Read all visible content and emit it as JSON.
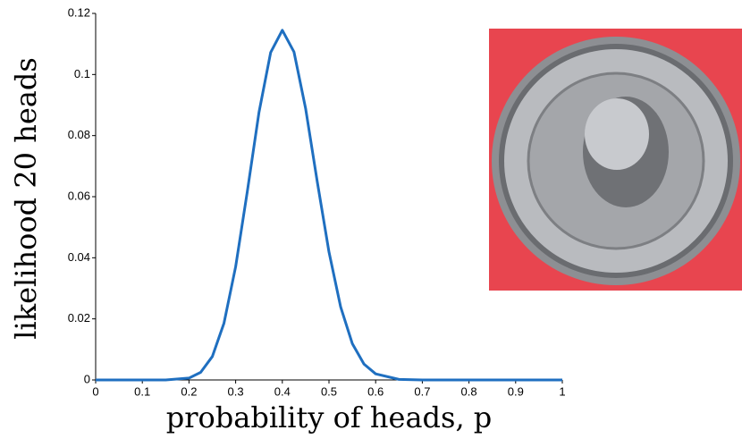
{
  "chart_data": {
    "type": "line",
    "xlabel": "probability of heads, p",
    "ylabel": "likelihood 20 heads",
    "x": [
      0,
      0.05,
      0.1,
      0.15,
      0.2,
      0.225,
      0.25,
      0.275,
      0.3,
      0.325,
      0.35,
      0.375,
      0.4,
      0.425,
      0.45,
      0.475,
      0.5,
      0.525,
      0.55,
      0.575,
      0.6,
      0.65,
      0.7,
      0.8,
      0.9,
      1
    ],
    "series": [
      {
        "color": "#1f6fc0",
        "values": [
          0,
          0,
          0,
          1.19e-05,
          0.00061,
          0.00249,
          0.00766,
          0.0186,
          0.0371,
          0.0617,
          0.0876,
          0.1072,
          0.1145,
          0.1074,
          0.0888,
          0.0648,
          0.0419,
          0.0239,
          0.0119,
          0.0052,
          0.002,
          0.00018,
          7.7e-06,
          0,
          0,
          0
        ]
      }
    ],
    "xlim": [
      0,
      1
    ],
    "xticks": [
      0,
      0.1,
      0.2,
      0.3,
      0.4,
      0.5,
      0.6,
      0.7,
      0.8,
      0.9,
      1
    ],
    "ylim": [
      0,
      0.12
    ],
    "yticks": [
      0,
      0.02,
      0.04,
      0.06,
      0.08,
      0.1,
      0.12
    ]
  }
}
